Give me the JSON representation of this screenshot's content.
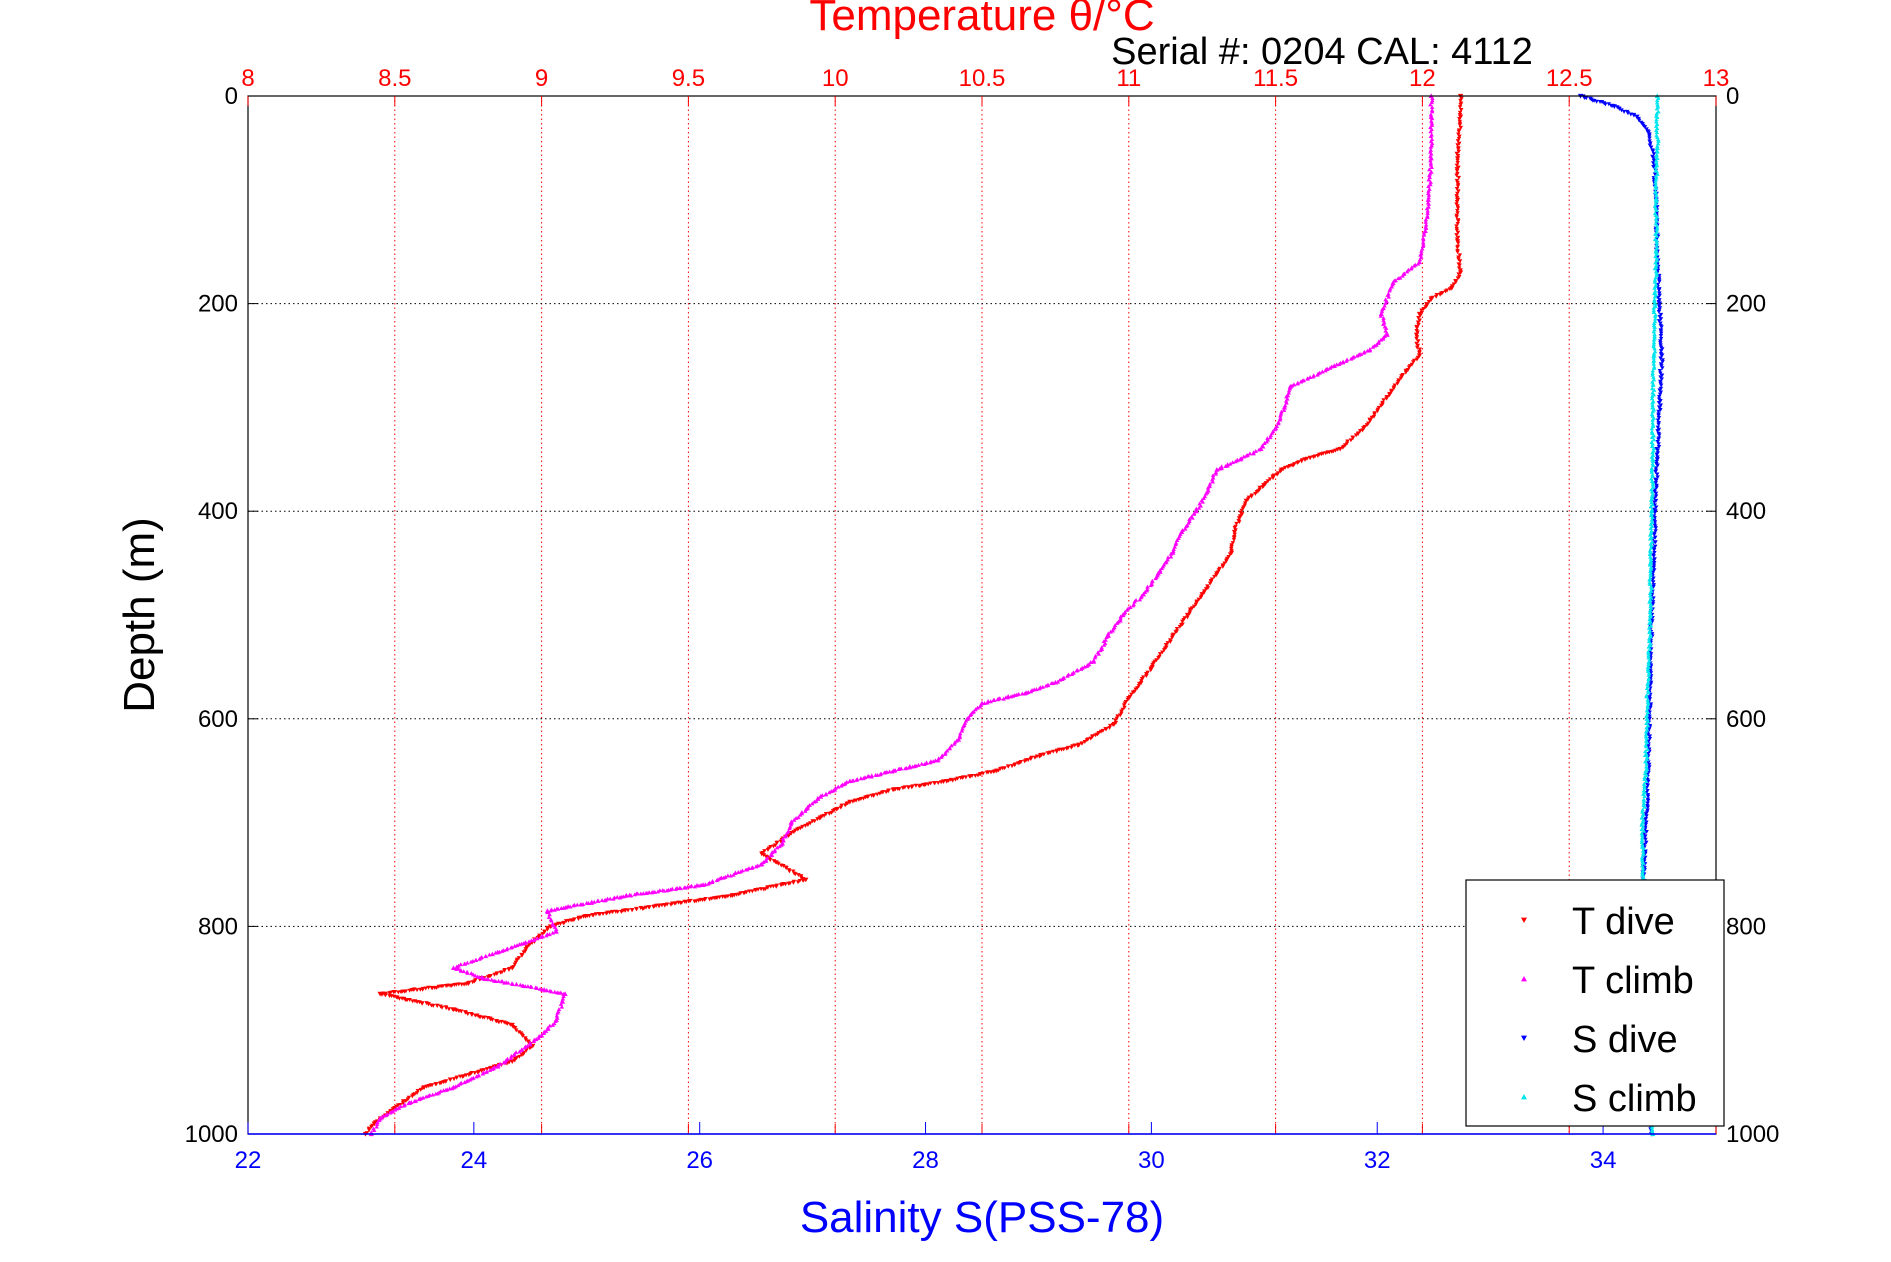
{
  "chart_data": {
    "type": "scatter",
    "title_top": "Temperature θ/°C",
    "subtitle": "Serial #: 0204  CAL: 4112",
    "ylabel": "Depth (m)",
    "xlabel_bottom": "Salinity S(PSS-78)",
    "temperature_axis": {
      "range": [
        8,
        13
      ],
      "ticks": [
        "8",
        "8.5",
        "9",
        "9.5",
        "10",
        "10.5",
        "11",
        "11.5",
        "12",
        "12.5",
        "13"
      ],
      "color": "#ff0000"
    },
    "salinity_axis": {
      "range": [
        22,
        35
      ],
      "ticks": [
        "22",
        "24",
        "26",
        "28",
        "30",
        "32",
        "34"
      ],
      "color": "#0000ff"
    },
    "depth_axis": {
      "range": [
        0,
        1000
      ],
      "reversed": true,
      "ticks": [
        "0",
        "200",
        "400",
        "600",
        "800",
        "1000"
      ]
    },
    "grid": true,
    "legend_position": "bottom-right",
    "series": [
      {
        "name": "T dive",
        "axis": "temperature",
        "color": "#ff0000",
        "marker": "triangle-down",
        "points": [
          [
            12.13,
            0
          ],
          [
            12.13,
            20
          ],
          [
            12.12,
            60
          ],
          [
            12.12,
            100
          ],
          [
            12.12,
            140
          ],
          [
            12.13,
            170
          ],
          [
            12.1,
            185
          ],
          [
            12.03,
            195
          ],
          [
            11.99,
            210
          ],
          [
            11.98,
            230
          ],
          [
            11.99,
            250
          ],
          [
            11.93,
            270
          ],
          [
            11.88,
            290
          ],
          [
            11.8,
            320
          ],
          [
            11.72,
            340
          ],
          [
            11.6,
            350
          ],
          [
            11.52,
            360
          ],
          [
            11.46,
            375
          ],
          [
            11.4,
            390
          ],
          [
            11.38,
            405
          ],
          [
            11.36,
            420
          ],
          [
            11.35,
            440
          ],
          [
            11.3,
            460
          ],
          [
            11.25,
            480
          ],
          [
            11.2,
            500
          ],
          [
            11.15,
            520
          ],
          [
            11.08,
            550
          ],
          [
            11.0,
            580
          ],
          [
            10.95,
            605
          ],
          [
            10.83,
            625
          ],
          [
            10.7,
            635
          ],
          [
            10.55,
            650
          ],
          [
            10.38,
            660
          ],
          [
            10.2,
            668
          ],
          [
            10.05,
            680
          ],
          [
            9.95,
            695
          ],
          [
            9.85,
            710
          ],
          [
            9.75,
            730
          ],
          [
            9.9,
            755
          ],
          [
            9.65,
            770
          ],
          [
            9.4,
            780
          ],
          [
            9.15,
            790
          ],
          [
            9.03,
            800
          ],
          [
            8.95,
            820
          ],
          [
            8.9,
            840
          ],
          [
            8.75,
            855
          ],
          [
            8.45,
            865
          ],
          [
            8.7,
            880
          ],
          [
            8.9,
            895
          ],
          [
            8.97,
            915
          ],
          [
            8.9,
            930
          ],
          [
            8.6,
            955
          ],
          [
            8.5,
            975
          ],
          [
            8.43,
            990
          ],
          [
            8.4,
            1000
          ]
        ]
      },
      {
        "name": "T climb",
        "axis": "temperature",
        "color": "#ff00ff",
        "marker": "triangle-up",
        "points": [
          [
            12.03,
            0
          ],
          [
            12.03,
            20
          ],
          [
            12.03,
            60
          ],
          [
            12.02,
            100
          ],
          [
            12.01,
            130
          ],
          [
            11.99,
            160
          ],
          [
            11.9,
            180
          ],
          [
            11.86,
            210
          ],
          [
            11.88,
            230
          ],
          [
            11.82,
            245
          ],
          [
            11.7,
            260
          ],
          [
            11.55,
            280
          ],
          [
            11.53,
            300
          ],
          [
            11.5,
            320
          ],
          [
            11.45,
            340
          ],
          [
            11.38,
            350
          ],
          [
            11.3,
            360
          ],
          [
            11.27,
            380
          ],
          [
            11.23,
            400
          ],
          [
            11.18,
            420
          ],
          [
            11.15,
            440
          ],
          [
            11.1,
            460
          ],
          [
            11.05,
            480
          ],
          [
            10.98,
            500
          ],
          [
            10.93,
            520
          ],
          [
            10.88,
            545
          ],
          [
            10.75,
            565
          ],
          [
            10.65,
            575
          ],
          [
            10.5,
            585
          ],
          [
            10.45,
            600
          ],
          [
            10.42,
            620
          ],
          [
            10.35,
            640
          ],
          [
            10.2,
            650
          ],
          [
            10.05,
            660
          ],
          [
            9.95,
            675
          ],
          [
            9.85,
            700
          ],
          [
            9.82,
            720
          ],
          [
            9.75,
            740
          ],
          [
            9.55,
            760
          ],
          [
            9.3,
            770
          ],
          [
            9.02,
            785
          ],
          [
            9.05,
            805
          ],
          [
            8.85,
            825
          ],
          [
            8.7,
            840
          ],
          [
            8.8,
            850
          ],
          [
            9.08,
            865
          ],
          [
            9.05,
            890
          ],
          [
            9.0,
            905
          ],
          [
            8.85,
            935
          ],
          [
            8.7,
            955
          ],
          [
            8.55,
            970
          ],
          [
            8.45,
            985
          ],
          [
            8.42,
            1000
          ]
        ]
      },
      {
        "name": "S dive",
        "axis": "salinity",
        "color": "#0000ff",
        "marker": "triangle-down",
        "points": [
          [
            33.8,
            0
          ],
          [
            34.1,
            10
          ],
          [
            34.3,
            20
          ],
          [
            34.4,
            35
          ],
          [
            34.45,
            60
          ],
          [
            34.47,
            100
          ],
          [
            34.48,
            150
          ],
          [
            34.5,
            200
          ],
          [
            34.52,
            250
          ],
          [
            34.5,
            300
          ],
          [
            34.48,
            350
          ],
          [
            34.46,
            400
          ],
          [
            34.45,
            450
          ],
          [
            34.43,
            500
          ],
          [
            34.42,
            550
          ],
          [
            34.41,
            600
          ],
          [
            34.4,
            650
          ],
          [
            34.38,
            700
          ],
          [
            34.36,
            750
          ],
          [
            34.38,
            800
          ],
          [
            34.4,
            850
          ],
          [
            34.42,
            900
          ],
          [
            34.42,
            950
          ],
          [
            34.43,
            1000
          ]
        ]
      },
      {
        "name": "S climb",
        "axis": "salinity",
        "color": "#00e5ee",
        "marker": "triangle-up",
        "points": [
          [
            34.48,
            0
          ],
          [
            34.48,
            50
          ],
          [
            34.47,
            100
          ],
          [
            34.47,
            150
          ],
          [
            34.46,
            200
          ],
          [
            34.45,
            250
          ],
          [
            34.44,
            300
          ],
          [
            34.44,
            350
          ],
          [
            34.43,
            400
          ],
          [
            34.42,
            450
          ],
          [
            34.42,
            500
          ],
          [
            34.4,
            550
          ],
          [
            34.39,
            600
          ],
          [
            34.38,
            650
          ],
          [
            34.35,
            700
          ],
          [
            34.35,
            750
          ],
          [
            34.37,
            800
          ],
          [
            34.39,
            850
          ],
          [
            34.41,
            900
          ],
          [
            34.42,
            950
          ],
          [
            34.44,
            1000
          ]
        ]
      }
    ]
  }
}
